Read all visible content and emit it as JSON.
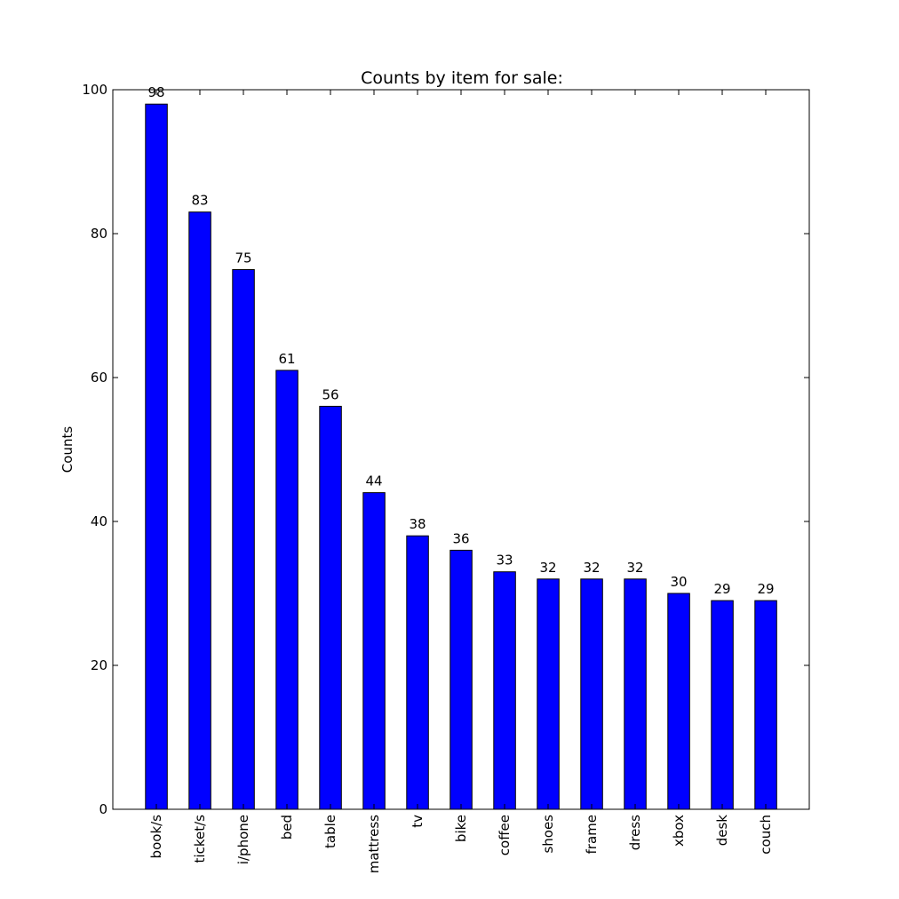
{
  "chart_data": {
    "type": "bar",
    "title": "Counts by item for sale:",
    "xlabel": "",
    "ylabel": "Counts",
    "categories": [
      "book/s",
      "ticket/s",
      "i/phone",
      "bed",
      "table",
      "mattress",
      "tv",
      "bike",
      "coffee",
      "shoes",
      "frame",
      "dress",
      "xbox",
      "desk",
      "couch"
    ],
    "values": [
      98,
      83,
      75,
      61,
      56,
      44,
      38,
      36,
      33,
      32,
      32,
      32,
      30,
      29,
      29
    ],
    "ylim": [
      0,
      100
    ],
    "yticks": [
      "0",
      "20",
      "40",
      "60",
      "80",
      "100"
    ],
    "grid": false,
    "legend": "none",
    "colors": {
      "bar_fill": "#0000ff",
      "bar_edge": "#000000",
      "axes": "#000000",
      "background": "#ffffff"
    }
  }
}
